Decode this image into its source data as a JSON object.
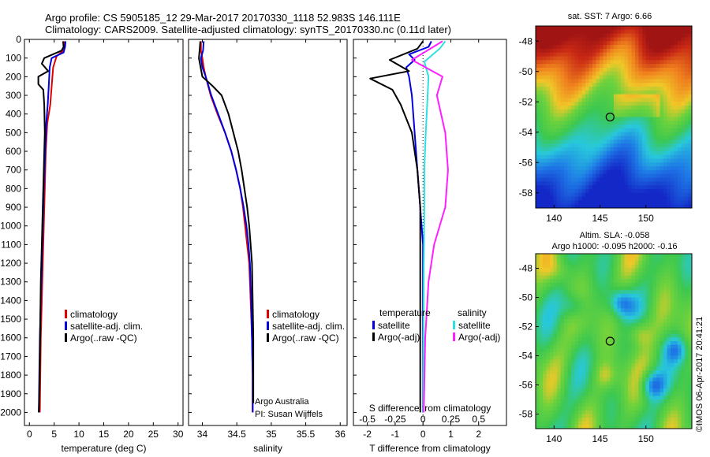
{
  "header": {
    "line1": "Argo profile: CS 5905185_12 29-Mar-2017 20170330_1118 52.983S 146.111E",
    "line2": "Climatology: CARS2009. Satellite-adjusted climatology: synTS_20170330.nc (0.11d later)"
  },
  "colors": {
    "climatology": "#e00000",
    "satellite": "#0000e0",
    "argo": "#000000",
    "salinity_sat": "#30e0e0",
    "salinity_argo": "#ff20ff"
  },
  "chart_data": [
    {
      "type": "line",
      "xlabel": "temperature (deg C)",
      "ylabel": "",
      "xlim": [
        -1,
        31
      ],
      "ylim": [
        2070,
        0
      ],
      "xticks": [
        "0",
        "5",
        "10",
        "15",
        "20",
        "25",
        "30"
      ],
      "xtick_values": [
        0,
        5,
        10,
        15,
        20,
        25,
        30
      ],
      "yticks": [
        "0",
        "100",
        "200",
        "300",
        "400",
        "500",
        "600",
        "700",
        "800",
        "900",
        "1000",
        "1100",
        "1200",
        "1300",
        "1400",
        "1500",
        "1600",
        "1700",
        "1800",
        "1900",
        "2000"
      ],
      "ytick_values": [
        0,
        100,
        200,
        300,
        400,
        500,
        600,
        700,
        800,
        900,
        1000,
        1100,
        1200,
        1300,
        1400,
        1500,
        1600,
        1700,
        1800,
        1900,
        2000
      ],
      "legend": [
        "climatology",
        "satellite-adj. clim.",
        "Argo(..raw -QC)"
      ],
      "legend_position": "right-middle",
      "series": [
        {
          "name": "climatology",
          "color": "#e00000",
          "points": [
            [
              7.0,
              10
            ],
            [
              7.0,
              40
            ],
            [
              6.8,
              60
            ],
            [
              5.5,
              90
            ],
            [
              4.8,
              150
            ],
            [
              4.5,
              250
            ],
            [
              4.2,
              350
            ],
            [
              3.6,
              450
            ],
            [
              3.3,
              600
            ],
            [
              3.1,
              800
            ],
            [
              2.9,
              1000
            ],
            [
              2.7,
              1200
            ],
            [
              2.5,
              1400
            ],
            [
              2.3,
              1600
            ],
            [
              2.2,
              1800
            ],
            [
              2.1,
              2000
            ]
          ]
        },
        {
          "name": "satellite-adj. clim.",
          "color": "#0000e0",
          "points": [
            [
              7.3,
              10
            ],
            [
              7.2,
              40
            ],
            [
              6.9,
              70
            ],
            [
              4.5,
              100
            ],
            [
              4.1,
              150
            ],
            [
              3.9,
              250
            ],
            [
              3.7,
              350
            ],
            [
              3.4,
              450
            ],
            [
              3.2,
              600
            ],
            [
              2.9,
              800
            ],
            [
              2.7,
              1000
            ],
            [
              2.5,
              1200
            ],
            [
              2.3,
              1400
            ],
            [
              2.1,
              1600
            ],
            [
              2.0,
              1800
            ],
            [
              1.9,
              2000
            ]
          ]
        },
        {
          "name": "Argo(..raw -QC)",
          "color": "#000000",
          "points": [
            [
              6.8,
              10
            ],
            [
              6.9,
              40
            ],
            [
              6.5,
              60
            ],
            [
              3.0,
              100
            ],
            [
              2.5,
              130
            ],
            [
              3.8,
              170
            ],
            [
              1.8,
              200
            ],
            [
              1.8,
              240
            ],
            [
              2.8,
              270
            ],
            [
              3.0,
              350
            ],
            [
              3.1,
              500
            ],
            [
              2.9,
              700
            ],
            [
              2.7,
              900
            ],
            [
              2.5,
              1100
            ],
            [
              2.3,
              1300
            ],
            [
              2.2,
              1500
            ],
            [
              2.1,
              1700
            ],
            [
              2.0,
              1900
            ],
            [
              1.9,
              2000
            ]
          ]
        }
      ]
    },
    {
      "type": "line",
      "xlabel": "salinity",
      "ylabel": "",
      "xlim": [
        33.8,
        36.1
      ],
      "ylim": [
        2070,
        0
      ],
      "xticks": [
        "34",
        "34.5",
        "35",
        "35.5",
        "36"
      ],
      "xtick_values": [
        34,
        34.5,
        35,
        35.5,
        36
      ],
      "legend": [
        "climatology",
        "satellite-adj. clim.",
        "Argo(..raw -QC)"
      ],
      "legend_position": "right-middle",
      "annotations": [
        "Argo Australia",
        "PI: Susan Wijffels"
      ],
      "series": [
        {
          "name": "climatology",
          "color": "#e00000",
          "points": [
            [
              33.98,
              10
            ],
            [
              33.98,
              60
            ],
            [
              34.0,
              100
            ],
            [
              34.02,
              150
            ],
            [
              34.05,
              200
            ],
            [
              34.12,
              300
            ],
            [
              34.22,
              400
            ],
            [
              34.33,
              500
            ],
            [
              34.42,
              600
            ],
            [
              34.49,
              700
            ],
            [
              34.55,
              800
            ],
            [
              34.59,
              900
            ],
            [
              34.62,
              1000
            ],
            [
              34.65,
              1100
            ],
            [
              34.68,
              1200
            ],
            [
              34.7,
              1400
            ],
            [
              34.72,
              1600
            ],
            [
              34.73,
              1800
            ],
            [
              34.73,
              2000
            ]
          ]
        },
        {
          "name": "satellite-adj. clim.",
          "color": "#0000e0",
          "points": [
            [
              34.02,
              10
            ],
            [
              34.01,
              60
            ],
            [
              33.98,
              100
            ],
            [
              34.0,
              150
            ],
            [
              34.05,
              200
            ],
            [
              34.13,
              300
            ],
            [
              34.23,
              400
            ],
            [
              34.33,
              500
            ],
            [
              34.42,
              600
            ],
            [
              34.49,
              700
            ],
            [
              34.55,
              800
            ],
            [
              34.6,
              900
            ],
            [
              34.64,
              1000
            ],
            [
              34.67,
              1100
            ],
            [
              34.69,
              1200
            ],
            [
              34.71,
              1400
            ],
            [
              34.72,
              1600
            ],
            [
              34.73,
              1800
            ],
            [
              34.73,
              2000
            ]
          ]
        },
        {
          "name": "Argo(..raw -QC)",
          "color": "#000000",
          "points": [
            [
              33.97,
              10
            ],
            [
              33.96,
              60
            ],
            [
              33.95,
              100
            ],
            [
              34.0,
              200
            ],
            [
              34.15,
              250
            ],
            [
              34.28,
              300
            ],
            [
              34.38,
              400
            ],
            [
              34.45,
              500
            ],
            [
              34.52,
              600
            ],
            [
              34.57,
              700
            ],
            [
              34.61,
              800
            ],
            [
              34.65,
              900
            ],
            [
              34.68,
              1000
            ],
            [
              34.7,
              1100
            ],
            [
              34.72,
              1200
            ],
            [
              34.73,
              1400
            ],
            [
              34.74,
              1600
            ],
            [
              34.74,
              1800
            ],
            [
              34.74,
              1950
            ]
          ]
        }
      ]
    },
    {
      "type": "line",
      "xlabel": "T difference from climatology",
      "top_axis_label": "S difference from climatology",
      "xlim": [
        -2.5,
        3.0
      ],
      "ylim": [
        2070,
        0
      ],
      "xticks": [
        "-2",
        "-1",
        "0",
        "1",
        "2"
      ],
      "xtick_values": [
        -2,
        -1,
        0,
        1,
        2
      ],
      "top_xticks": [
        "-0.5",
        "-0.25",
        "0",
        "0.25",
        "0.5"
      ],
      "top_xtick_values": [
        -0.5,
        -0.25,
        0,
        0.25,
        0.5
      ],
      "legend_titles": [
        "temperature",
        "salinity"
      ],
      "legend": [
        "satellite",
        "Argo(-adj)",
        "satellite",
        "Argo(-adj)"
      ],
      "legend_position": "middle",
      "series": [
        {
          "name": "satellite",
          "group": "temperature",
          "color": "#0000e0",
          "points": [
            [
              0.3,
              10
            ],
            [
              0.2,
              40
            ],
            [
              -0.5,
              80
            ],
            [
              -0.3,
              110
            ],
            [
              -0.6,
              150
            ],
            [
              -0.5,
              200
            ],
            [
              -0.4,
              300
            ],
            [
              -0.3,
              500
            ],
            [
              -0.2,
              700
            ],
            [
              -0.1,
              900
            ],
            [
              0,
              1100
            ],
            [
              0,
              1400
            ],
            [
              0,
              1700
            ],
            [
              0,
              2000
            ]
          ]
        },
        {
          "name": "Argo(-adj)",
          "group": "temperature",
          "color": "#000000",
          "points": [
            [
              0,
              10
            ],
            [
              -0.2,
              50
            ],
            [
              -1.2,
              110
            ],
            [
              -0.5,
              170
            ],
            [
              -1.9,
              210
            ],
            [
              -1.1,
              270
            ],
            [
              -0.8,
              350
            ],
            [
              -0.4,
              500
            ],
            [
              -0.2,
              700
            ],
            [
              -0.1,
              900
            ],
            [
              -0.1,
              1200
            ],
            [
              -0.1,
              1500
            ],
            [
              -0.1,
              1800
            ],
            [
              -0.1,
              2000
            ]
          ]
        },
        {
          "name": "satellite",
          "group": "salinity",
          "color": "#30e0e0",
          "points": [
            [
              0.8,
              10
            ],
            [
              0.6,
              50
            ],
            [
              0.05,
              120
            ],
            [
              0.2,
              200
            ],
            [
              0.15,
              350
            ],
            [
              0.1,
              500
            ],
            [
              0.05,
              700
            ],
            [
              0.05,
              900
            ],
            [
              0.03,
              1200
            ],
            [
              0.02,
              1500
            ],
            [
              0.01,
              1800
            ],
            [
              0.01,
              2000
            ]
          ]
        },
        {
          "name": "Argo(-adj)",
          "group": "salinity",
          "color": "#ff20ff",
          "points": [
            [
              0.7,
              10
            ],
            [
              -0.4,
              110
            ],
            [
              0.7,
              200
            ],
            [
              0.5,
              300
            ],
            [
              0.8,
              500
            ],
            [
              0.9,
              700
            ],
            [
              0.8,
              900
            ],
            [
              0.4,
              1100
            ],
            [
              0.2,
              1300
            ],
            [
              0.08,
              1600
            ],
            [
              0.03,
              2000
            ]
          ]
        }
      ]
    },
    {
      "type": "heatmap",
      "title": "sat. SST: 7 Argo: 6.66",
      "xticks": [
        "140",
        "145",
        "150"
      ],
      "xtick_values": [
        140,
        145,
        150
      ],
      "yticks": [
        "-48",
        "-50",
        "-52",
        "-54",
        "-56",
        "-58"
      ],
      "ytick_values": [
        -48,
        -50,
        -52,
        -54,
        -56,
        -58
      ],
      "xlim": [
        138,
        155
      ],
      "ylim": [
        -59,
        -47
      ],
      "marker": {
        "lon": 146.1,
        "lat": -53.0
      }
    },
    {
      "type": "heatmap",
      "title": "Altim. SLA: -0.058",
      "subtitle": "Argo h1000: -0.095 h2000: -0.16",
      "xticks": [
        "140",
        "145",
        "150"
      ],
      "xtick_values": [
        140,
        145,
        150
      ],
      "yticks": [
        "-48",
        "-50",
        "-52",
        "-54",
        "-56",
        "-58"
      ],
      "ytick_values": [
        -48,
        -50,
        -52,
        -54,
        -56,
        -58
      ],
      "xlim": [
        138,
        155
      ],
      "ylim": [
        -59,
        -47
      ],
      "marker": {
        "lon": 146.1,
        "lat": -53.0
      }
    }
  ],
  "credit": "©IMOS 06-Apr-2017 20:41:21"
}
